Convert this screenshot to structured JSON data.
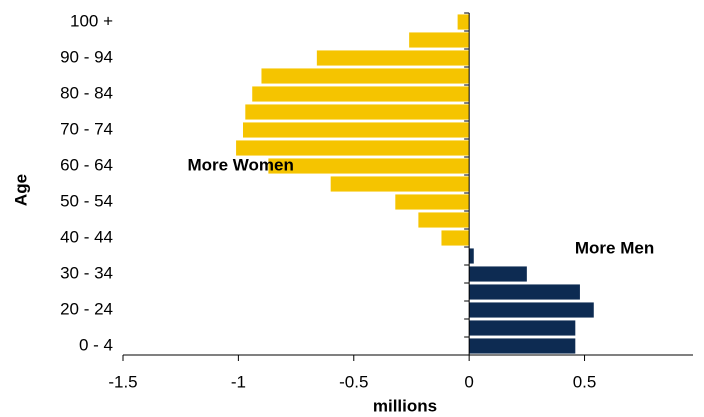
{
  "chart_data": {
    "type": "hbar",
    "y_label": "Age",
    "x_label": "millions",
    "categories": [
      "0 - 4",
      null,
      "20 - 24",
      null,
      "30 - 34",
      null,
      "40 - 44",
      null,
      "50 - 54",
      null,
      "60 - 64",
      null,
      "70 - 74",
      null,
      "80 - 84",
      null,
      "90 - 94",
      null,
      "100 +"
    ],
    "values": [
      0.46,
      0.46,
      0.54,
      0.48,
      0.25,
      0.02,
      -0.12,
      -0.22,
      -0.32,
      -0.6,
      -0.87,
      -1.01,
      -0.98,
      -0.97,
      -0.94,
      -0.9,
      -0.66,
      -0.26,
      -0.05
    ],
    "positive_color": "#0d2b52",
    "negative_color": "#f5c400",
    "xlim": [
      -1.5,
      0.97
    ],
    "xticks": [
      -1.5,
      -1,
      -0.5,
      0,
      0.5
    ],
    "annotations": [
      {
        "text": "More Women",
        "x": -0.99,
        "y": 10.5
      },
      {
        "text": "More Men",
        "x": 0.63,
        "y": 5.9
      }
    ]
  }
}
